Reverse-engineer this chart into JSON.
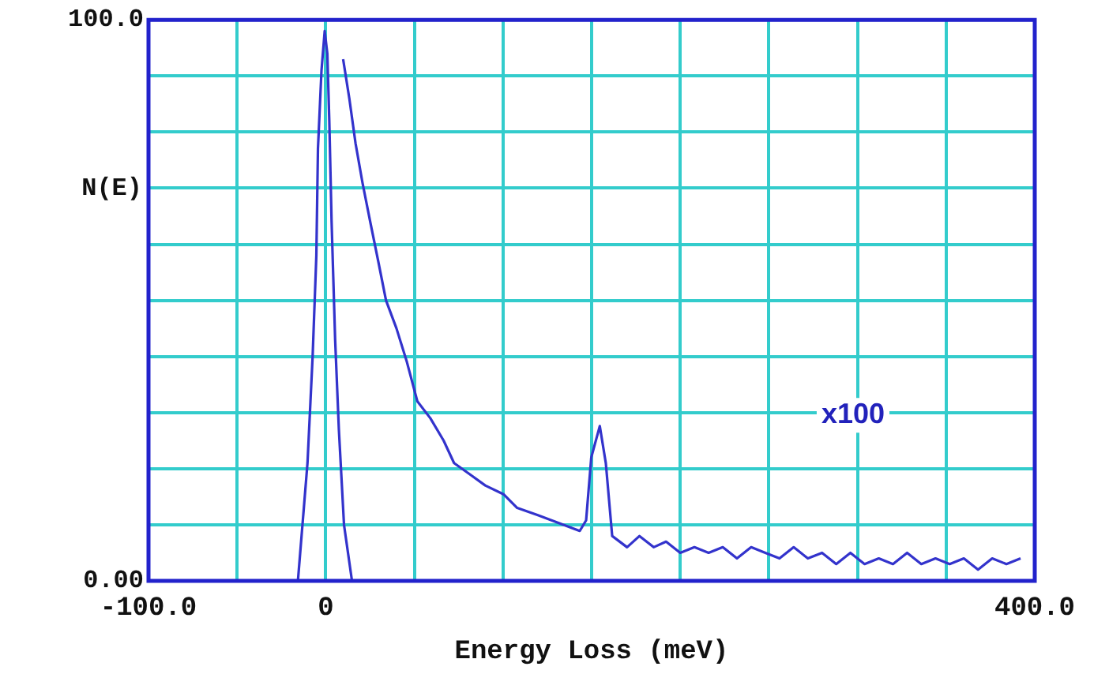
{
  "chart_data": {
    "type": "line",
    "xlabel": "Energy Loss (meV)",
    "ylabel": "N(E)",
    "xlim": [
      -100,
      400
    ],
    "ylim": [
      0,
      100
    ],
    "xticks": [
      {
        "value": -100,
        "label": "-100.0"
      },
      {
        "value": -50,
        "label": null
      },
      {
        "value": 0,
        "label": "0"
      },
      {
        "value": 50,
        "label": null
      },
      {
        "value": 100,
        "label": null
      },
      {
        "value": 150,
        "label": null
      },
      {
        "value": 200,
        "label": null
      },
      {
        "value": 250,
        "label": null
      },
      {
        "value": 300,
        "label": null
      },
      {
        "value": 350,
        "label": null
      },
      {
        "value": 400,
        "label": "400.0"
      }
    ],
    "yticks": [
      {
        "value": 0,
        "label": "0.00"
      },
      {
        "value": 10,
        "label": null
      },
      {
        "value": 20,
        "label": null
      },
      {
        "value": 30,
        "label": null
      },
      {
        "value": 40,
        "label": null
      },
      {
        "value": 50,
        "label": null
      },
      {
        "value": 60,
        "label": null
      },
      {
        "value": 70,
        "label": null
      },
      {
        "value": 80,
        "label": null
      },
      {
        "value": 90,
        "label": null
      },
      {
        "value": 100,
        "label": "100.0"
      }
    ],
    "grid": true,
    "legend": false,
    "marker": "none",
    "line_style": "solid",
    "annotations": [
      "x100"
    ],
    "series": [
      {
        "color": "#3333cc",
        "x": [
          -15.7,
          -10.3,
          -7.4,
          -5.3,
          -4.4,
          -2.4,
          -0.6,
          0.9,
          2,
          3.3,
          5.3,
          7.4,
          10.3,
          14.8
        ],
        "values": [
          0,
          21,
          40,
          58,
          77,
          91,
          98,
          94,
          82,
          64,
          43,
          27,
          10,
          0
        ]
      },
      {
        "color": "#3333cc",
        "x": [
          9.8,
          13.3,
          16.8,
          20.7,
          25.1,
          29.6,
          34,
          39.9,
          45.8,
          51.7,
          59,
          66.5,
          72.4,
          81.3,
          90,
          100.5,
          108,
          119.7,
          131.5,
          143.3,
          146.9,
          149.8,
          154.6,
          158,
          161.6,
          170,
          177,
          185,
          192,
          200,
          208,
          216,
          224,
          232,
          240,
          248,
          256,
          264,
          272,
          280,
          288,
          296,
          304,
          312,
          320,
          328,
          336,
          344,
          352,
          360,
          368,
          376,
          384,
          392
        ],
        "values": [
          93,
          86,
          78,
          71,
          64,
          57,
          50,
          45,
          39,
          32,
          29,
          25,
          21,
          19,
          17,
          15.4,
          13,
          11.7,
          10.3,
          8.9,
          10.8,
          22,
          27.6,
          21,
          8,
          6,
          8,
          6,
          7,
          5,
          6,
          5,
          6,
          4,
          6,
          5,
          4,
          6,
          4,
          5,
          3,
          5,
          3,
          4,
          3,
          5,
          3,
          4,
          3,
          4,
          2,
          4,
          3,
          4
        ]
      }
    ]
  }
}
